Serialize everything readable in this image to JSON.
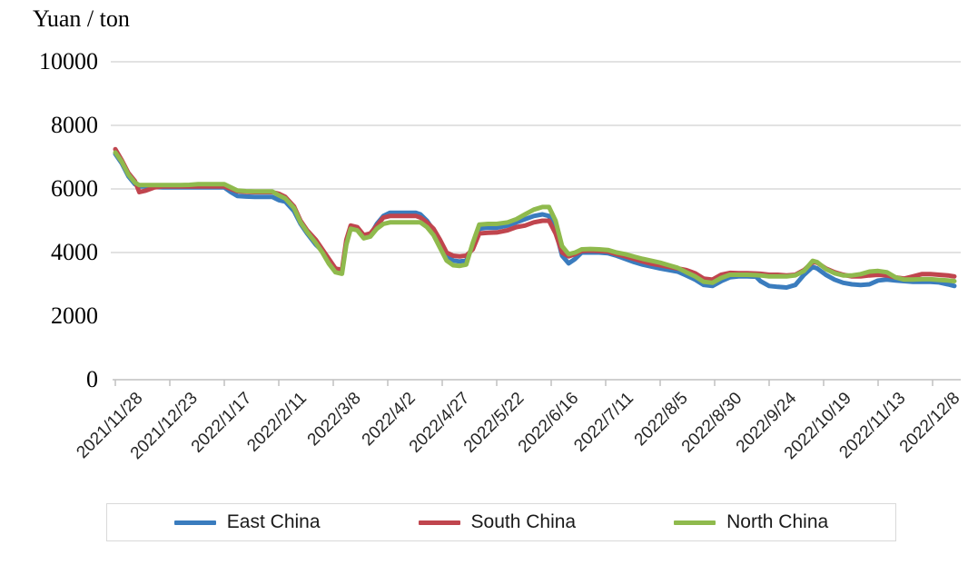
{
  "title": "Yuan / ton",
  "colors": {
    "east_china": "#3A7CBE",
    "south_china": "#C0454E",
    "north_china": "#8FBA4D",
    "gridline": "#D9D9D9",
    "axis": "#C0C0C0"
  },
  "legend": {
    "items": [
      {
        "label": "East China",
        "color": "#3A7CBE"
      },
      {
        "label": "South China",
        "color": "#C0454E"
      },
      {
        "label": "North China",
        "color": "#8FBA4D"
      }
    ]
  },
  "chart_data": {
    "type": "line",
    "title": "Yuan / ton",
    "ylabel": "Yuan / ton",
    "xlabel": "",
    "ylim": [
      0,
      10000
    ],
    "y_tick_labels": [
      "0",
      "2000",
      "4000",
      "6000",
      "8000",
      "10000"
    ],
    "y_ticks": [
      0,
      2000,
      4000,
      6000,
      8000,
      10000
    ],
    "gridlines_at": [
      4000,
      6000,
      8000,
      10000
    ],
    "grid": "horizontal-only",
    "legend_position": "bottom",
    "x_start_date": "2021/11/28",
    "x_tick_interval_days": 25,
    "x_tick_labels": [
      "2021/11/28",
      "2021/12/23",
      "2022/1/17",
      "2022/2/11",
      "2022/3/8",
      "2022/4/2",
      "2022/4/27",
      "2022/5/22",
      "2022/6/16",
      "2022/7/11",
      "2022/8/5",
      "2022/8/30",
      "2022/9/24",
      "2022/10/19",
      "2022/11/13",
      "2022/12/8"
    ],
    "x_days": [
      0,
      3,
      6,
      9,
      11,
      14,
      18,
      22,
      26,
      30,
      34,
      38,
      42,
      46,
      50,
      53,
      56,
      60,
      64,
      68,
      72,
      75,
      78,
      82,
      85,
      88,
      92,
      95,
      98,
      101,
      104,
      106,
      108,
      111,
      114,
      117,
      120,
      123,
      126,
      130,
      134,
      138,
      140,
      143,
      146,
      149,
      152,
      155,
      158,
      161,
      164,
      167,
      171,
      175,
      180,
      184,
      188,
      192,
      196,
      199,
      202,
      205,
      208,
      211,
      214,
      218,
      222,
      226,
      230,
      234,
      238,
      242,
      246,
      250,
      254,
      258,
      262,
      266,
      270,
      274,
      278,
      282,
      286,
      290,
      294,
      296,
      300,
      304,
      308,
      312,
      316,
      320,
      322,
      326,
      330,
      334,
      338,
      342,
      346,
      350,
      354,
      358,
      362,
      366,
      370,
      374,
      378,
      382,
      385
    ],
    "series": [
      {
        "name": "East China",
        "color": "#3A7CBE",
        "values": [
          7100,
          6800,
          6400,
          6150,
          6080,
          6080,
          6060,
          6050,
          6050,
          6050,
          6050,
          6050,
          6050,
          6050,
          6050,
          5900,
          5780,
          5760,
          5750,
          5750,
          5750,
          5650,
          5600,
          5300,
          4900,
          4600,
          4250,
          4050,
          3700,
          3450,
          3400,
          4300,
          4800,
          4750,
          4500,
          4550,
          4900,
          5150,
          5250,
          5250,
          5250,
          5250,
          5200,
          5000,
          4700,
          4300,
          3900,
          3750,
          3720,
          3750,
          4200,
          4750,
          4780,
          4780,
          4850,
          4950,
          5050,
          5150,
          5200,
          5150,
          4700,
          3900,
          3660,
          3800,
          4000,
          4000,
          4000,
          3980,
          3900,
          3800,
          3700,
          3620,
          3560,
          3500,
          3450,
          3400,
          3280,
          3150,
          2980,
          2950,
          3100,
          3220,
          3250,
          3250,
          3240,
          3100,
          2950,
          2920,
          2900,
          2980,
          3300,
          3550,
          3500,
          3300,
          3150,
          3050,
          3000,
          2980,
          3000,
          3120,
          3150,
          3120,
          3100,
          3080,
          3080,
          3080,
          3060,
          3000,
          2950
        ]
      },
      {
        "name": "South China",
        "color": "#C0454E",
        "values": [
          7250,
          6900,
          6500,
          6250,
          5900,
          5950,
          6050,
          6080,
          6080,
          6080,
          6080,
          6080,
          6080,
          6080,
          6080,
          6000,
          5930,
          5910,
          5900,
          5900,
          5900,
          5850,
          5750,
          5450,
          5000,
          4700,
          4400,
          4100,
          3800,
          3500,
          3450,
          4400,
          4850,
          4800,
          4550,
          4600,
          4850,
          5100,
          5150,
          5150,
          5150,
          5150,
          5100,
          4950,
          4750,
          4400,
          4000,
          3900,
          3880,
          3900,
          4100,
          4600,
          4620,
          4630,
          4700,
          4800,
          4850,
          4950,
          5000,
          5000,
          4600,
          4000,
          3880,
          3950,
          4050,
          4060,
          4050,
          4030,
          3950,
          3880,
          3800,
          3720,
          3650,
          3600,
          3550,
          3500,
          3450,
          3350,
          3180,
          3150,
          3300,
          3360,
          3350,
          3350,
          3340,
          3330,
          3300,
          3300,
          3280,
          3300,
          3450,
          3700,
          3680,
          3500,
          3380,
          3300,
          3250,
          3250,
          3280,
          3300,
          3280,
          3220,
          3180,
          3250,
          3320,
          3320,
          3300,
          3280,
          3250
        ]
      },
      {
        "name": "North China",
        "color": "#8FBA4D",
        "values": [
          7150,
          6850,
          6450,
          6200,
          6120,
          6120,
          6120,
          6120,
          6120,
          6120,
          6130,
          6150,
          6150,
          6150,
          6150,
          6050,
          5950,
          5930,
          5920,
          5920,
          5920,
          5800,
          5700,
          5400,
          4950,
          4650,
          4300,
          4000,
          3650,
          3380,
          3330,
          4250,
          4750,
          4700,
          4450,
          4500,
          4750,
          4900,
          4950,
          4950,
          4950,
          4950,
          4950,
          4800,
          4550,
          4150,
          3750,
          3600,
          3580,
          3620,
          4300,
          4880,
          4900,
          4900,
          4950,
          5050,
          5200,
          5350,
          5430,
          5430,
          5000,
          4200,
          3950,
          4000,
          4100,
          4110,
          4100,
          4080,
          4000,
          3950,
          3870,
          3800,
          3740,
          3680,
          3600,
          3520,
          3380,
          3250,
          3080,
          3050,
          3200,
          3300,
          3300,
          3300,
          3290,
          3280,
          3250,
          3250,
          3250,
          3280,
          3420,
          3740,
          3700,
          3480,
          3350,
          3280,
          3280,
          3320,
          3400,
          3420,
          3380,
          3220,
          3150,
          3150,
          3160,
          3160,
          3140,
          3120,
          3100
        ]
      }
    ]
  }
}
